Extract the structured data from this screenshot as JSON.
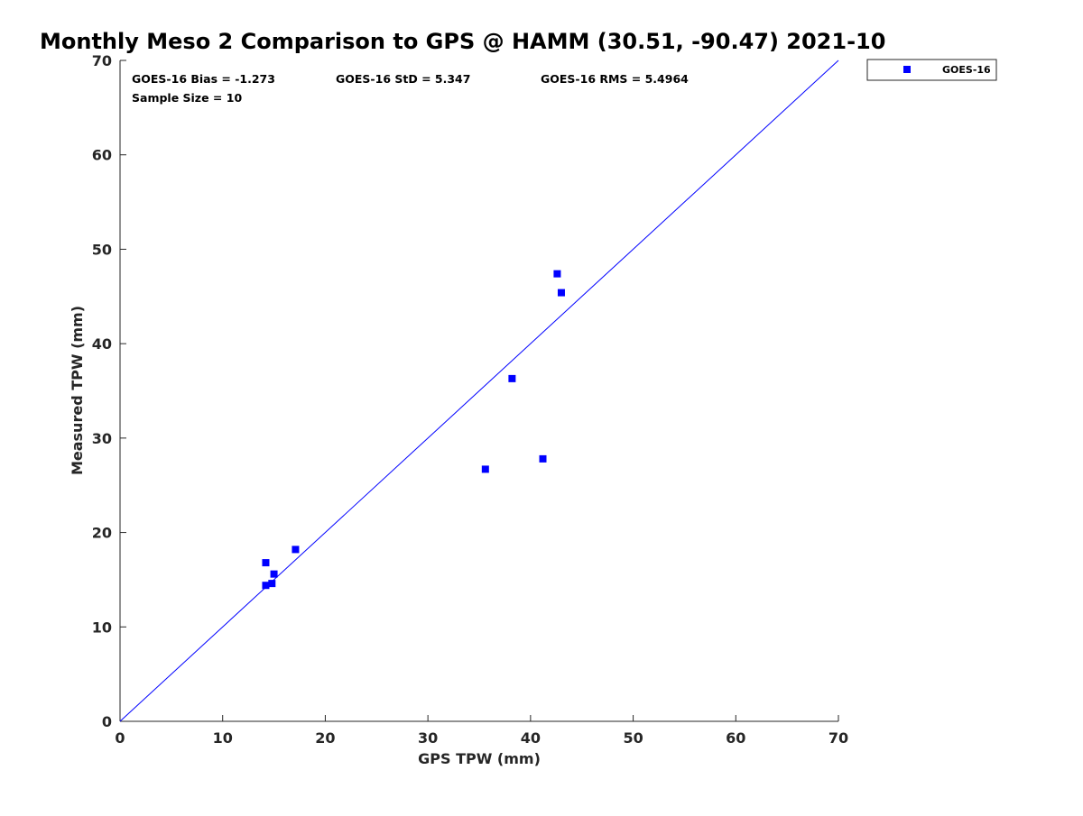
{
  "chart_data": {
    "type": "scatter",
    "title": "Monthly Meso 2 Comparison to GPS @ HAMM (30.51, -90.47) 2021-10",
    "xlabel": "GPS TPW (mm)",
    "ylabel": "Measured TPW (mm)",
    "xlim": [
      0,
      70
    ],
    "ylim": [
      0,
      70
    ],
    "xticks": [
      0,
      10,
      20,
      30,
      40,
      50,
      60,
      70
    ],
    "yticks": [
      0,
      10,
      20,
      30,
      40,
      50,
      60,
      70
    ],
    "xtick_labels": [
      "0",
      "10",
      "20",
      "30",
      "40",
      "50",
      "60",
      "70"
    ],
    "ytick_labels": [
      "0",
      "10",
      "20",
      "30",
      "40",
      "50",
      "60",
      "70"
    ],
    "grid": false,
    "legend_position": "outside top-right",
    "series": [
      {
        "name": "GOES-16",
        "color": "#0000ff",
        "marker": "square",
        "points": [
          {
            "x": 14.2,
            "y": 16.8
          },
          {
            "x": 14.2,
            "y": 14.4
          },
          {
            "x": 14.8,
            "y": 14.6
          },
          {
            "x": 15.0,
            "y": 15.6
          },
          {
            "x": 17.1,
            "y": 18.2
          },
          {
            "x": 35.6,
            "y": 26.7
          },
          {
            "x": 38.2,
            "y": 36.3
          },
          {
            "x": 41.2,
            "y": 27.8
          },
          {
            "x": 42.6,
            "y": 47.4
          },
          {
            "x": 43.0,
            "y": 45.4
          }
        ]
      }
    ],
    "reference_line": {
      "from": [
        0,
        0
      ],
      "to": [
        70,
        70
      ],
      "color": "#0000ff"
    },
    "annotations": {
      "bias": "GOES-16 Bias = -1.273",
      "std": "GOES-16 StD = 5.347",
      "rms": "GOES-16 RMS = 5.4964",
      "sample_size": "Sample Size = 10"
    }
  }
}
